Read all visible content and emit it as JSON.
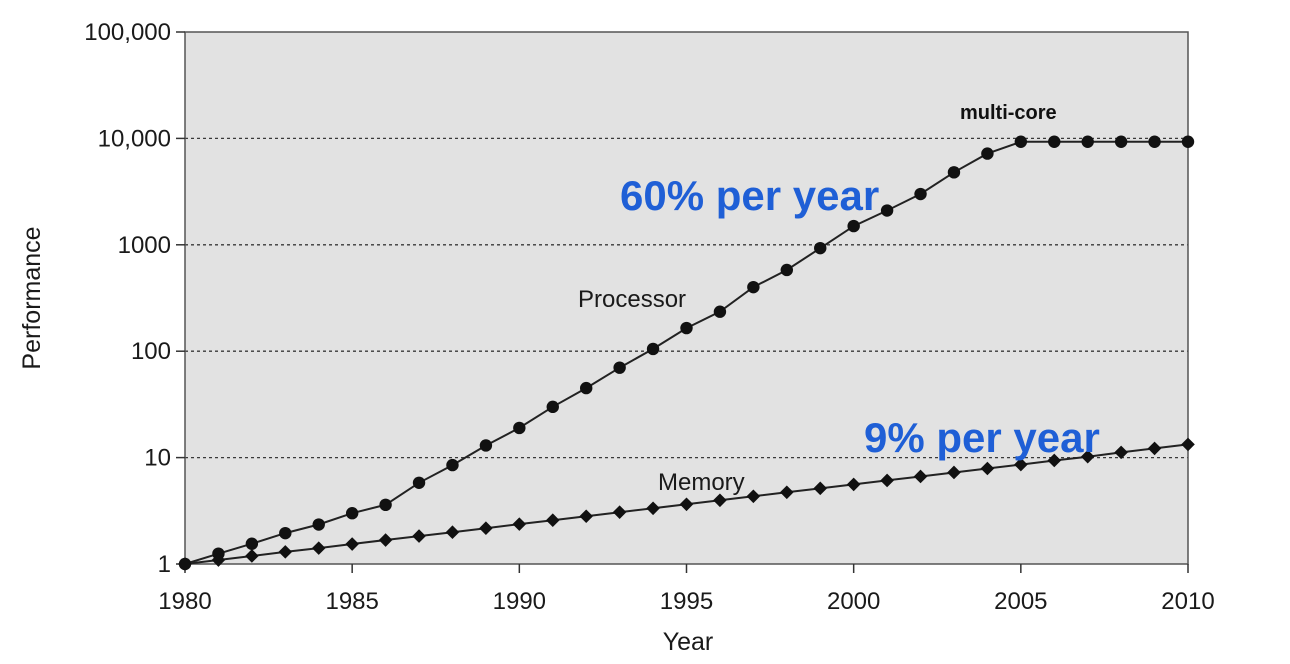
{
  "chart_data": {
    "type": "line",
    "xlabel": "Year",
    "ylabel": "Performance",
    "xlim": [
      1980,
      2010
    ],
    "ylim": [
      1,
      100000
    ],
    "yscale": "log",
    "x_ticks": [
      "1980",
      "1985",
      "1990",
      "1995",
      "2000",
      "2005",
      "2010"
    ],
    "y_ticks": [
      {
        "value": 1,
        "label": "1"
      },
      {
        "value": 10,
        "label": "10"
      },
      {
        "value": 100,
        "label": "100"
      },
      {
        "value": 1000,
        "label": "1000"
      },
      {
        "value": 10000,
        "label": "10,000"
      },
      {
        "value": 100000,
        "label": "100,000"
      }
    ],
    "grid": "dotted horizontal lines at 10, 100, 1000 and 10,000",
    "x": [
      1980,
      1981,
      1982,
      1983,
      1984,
      1985,
      1986,
      1987,
      1988,
      1989,
      1990,
      1991,
      1992,
      1993,
      1994,
      1995,
      1996,
      1997,
      1998,
      1999,
      2000,
      2001,
      2002,
      2003,
      2004,
      2005,
      2006,
      2007,
      2008,
      2009,
      2010
    ],
    "series": [
      {
        "name": "Processor",
        "marker": "circle",
        "values": [
          1,
          1.25,
          1.55,
          1.95,
          2.35,
          3.0,
          3.6,
          5.8,
          8.5,
          13,
          19,
          30,
          45,
          70,
          105,
          165,
          235,
          400,
          580,
          930,
          1500,
          2100,
          3000,
          4800,
          7200,
          9300,
          9300,
          9300,
          9300,
          9300,
          9300
        ]
      },
      {
        "name": "Memory",
        "marker": "diamond",
        "values": [
          1,
          1.09,
          1.19,
          1.3,
          1.41,
          1.54,
          1.68,
          1.83,
          1.99,
          2.17,
          2.37,
          2.58,
          2.81,
          3.07,
          3.34,
          3.64,
          3.97,
          4.33,
          4.72,
          5.14,
          5.6,
          6.1,
          6.65,
          7.25,
          7.9,
          8.6,
          9.4,
          10.2,
          11.2,
          12.2,
          13.3
        ]
      }
    ],
    "annotations": {
      "multi_core": "multi-core",
      "processor_rate": "60% per year",
      "memory_rate": "9% per year"
    },
    "colors": {
      "plot_background": "#e2e2e2",
      "series_line": "#222222",
      "marker": "#111111",
      "rate_text": "#1f5fd6",
      "grid": "#3a3a3a"
    }
  }
}
